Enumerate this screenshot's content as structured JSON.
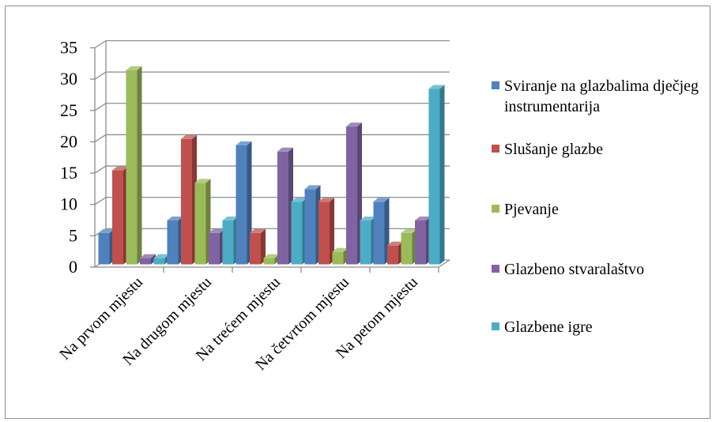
{
  "chart_data": {
    "type": "bar",
    "categories": [
      "Na prvom mjestu",
      "Na drugom mjestu",
      "Na trećem mjestu",
      "Na četvrtom mjestu",
      "Na petom mjestu"
    ],
    "series": [
      {
        "name": "Sviranje na glazbalima dječjeg instrumentarija",
        "color": "#4F81BD",
        "values": [
          5,
          7,
          19,
          12,
          10
        ]
      },
      {
        "name": "Slušanje glazbe",
        "color": "#C0504D",
        "values": [
          15,
          20,
          5,
          10,
          3
        ]
      },
      {
        "name": "Pjevanje",
        "color": "#9BBB59",
        "values": [
          31,
          13,
          1,
          2,
          5
        ]
      },
      {
        "name": "Glazbeno stvaralaštvo",
        "color": "#8064A2",
        "values": [
          1,
          5,
          18,
          22,
          7
        ]
      },
      {
        "name": "Glazbene igre",
        "color": "#4BACC6",
        "values": [
          1,
          7,
          10,
          7,
          28
        ]
      }
    ],
    "yticks": [
      0,
      5,
      10,
      15,
      20,
      25,
      30,
      35
    ],
    "ylim": [
      0,
      35
    ],
    "grid": true,
    "legend": "right",
    "style": "3d-clustered-column"
  }
}
